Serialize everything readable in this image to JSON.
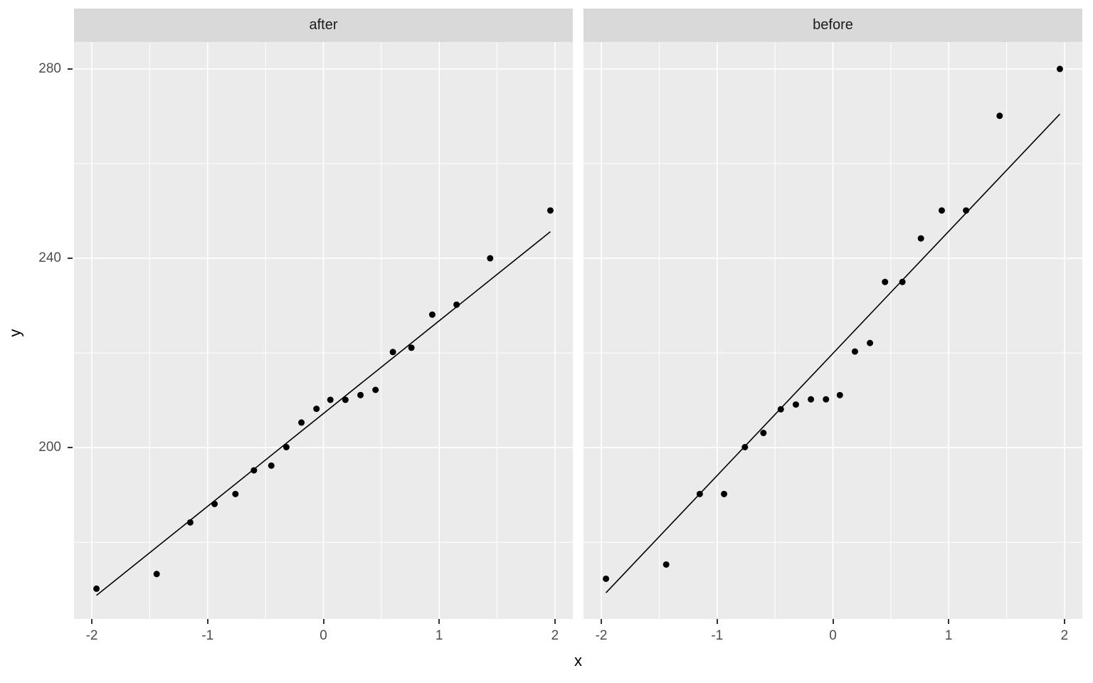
{
  "chart_data": {
    "type": "scatter",
    "description": "Faceted normal Q-Q style scatter plot with reference lines, two facets (after / before), ggplot2 styling",
    "xlabel": "x",
    "ylabel": "y",
    "x_ticks": [
      -2,
      -1,
      0,
      1,
      2
    ],
    "x_minor_ticks": [
      -1.5,
      -0.5,
      0.5,
      1.5
    ],
    "y_ticks": [
      200,
      240,
      280
    ],
    "y_minor_ticks": [
      180,
      220,
      260
    ],
    "xlim": [
      -2.154,
      2.154
    ],
    "ylim": [
      163.8,
      285.7
    ],
    "grid": "on",
    "legend": "none",
    "facets": [
      {
        "label": "after",
        "x": [
          -1.96,
          -1.44,
          -1.15,
          -0.94,
          -0.76,
          -0.6,
          -0.45,
          -0.32,
          -0.19,
          -0.06,
          0.06,
          0.19,
          0.32,
          0.45,
          0.6,
          0.76,
          0.94,
          1.15,
          1.44,
          1.96
        ],
        "y": [
          170.2,
          173.3,
          184.2,
          188.1,
          190.2,
          195.2,
          196.2,
          200.1,
          205.3,
          208.2,
          210.1,
          210.1,
          211.1,
          212.2,
          220.2,
          221.1,
          228.1,
          230.2,
          240.0,
          250.1
        ],
        "line": {
          "intercept": 207.2,
          "slope": 19.6,
          "x_start": -1.96,
          "x_end": 1.96
        }
      },
      {
        "label": "before",
        "x": [
          -1.96,
          -1.44,
          -1.15,
          -0.94,
          -0.76,
          -0.6,
          -0.45,
          -0.32,
          -0.19,
          -0.06,
          0.06,
          0.19,
          0.32,
          0.45,
          0.6,
          0.76,
          0.94,
          1.15,
          1.44,
          1.96
        ],
        "y": [
          172.3,
          175.3,
          190.2,
          190.2,
          200.1,
          203.1,
          208.1,
          209.1,
          210.2,
          210.2,
          211.1,
          220.3,
          222.1,
          235.0,
          235.0,
          244.2,
          250.1,
          250.1,
          270.1,
          280.0
        ],
        "line": {
          "intercept": 219.9,
          "slope": 25.8,
          "x_start": -1.96,
          "x_end": 1.96
        }
      }
    ],
    "style": {
      "panel_bg": "#EBEBEB",
      "strip_bg": "#D9D9D9",
      "strip_text": "#1A1A1A",
      "grid_color": "#FFFFFF",
      "point_color": "#000000",
      "line_color": "#000000",
      "tick_label_color": "#4D4D4D",
      "tick_mark_color": "#333333",
      "axis_title_color": "#000000",
      "point_radius": 4.5
    }
  }
}
